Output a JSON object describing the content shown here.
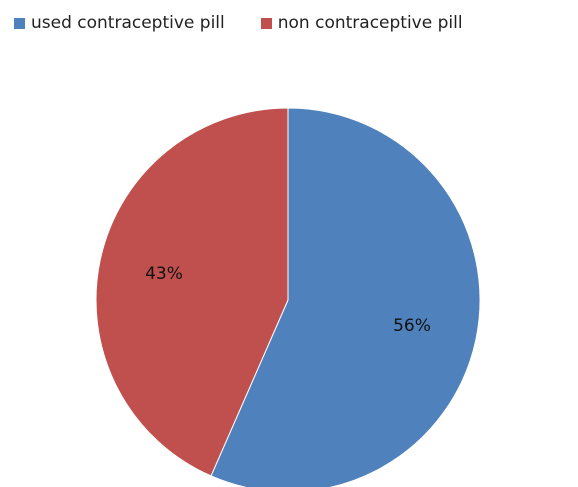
{
  "chart_data": {
    "type": "pie",
    "categories": [
      "used contraceptive pill",
      "non contraceptive pill"
    ],
    "values": [
      56,
      43
    ],
    "labels": [
      "56%",
      "43%"
    ],
    "colors": [
      "#4f81bd",
      "#c0504d"
    ],
    "legend_position": "top",
    "title": ""
  }
}
